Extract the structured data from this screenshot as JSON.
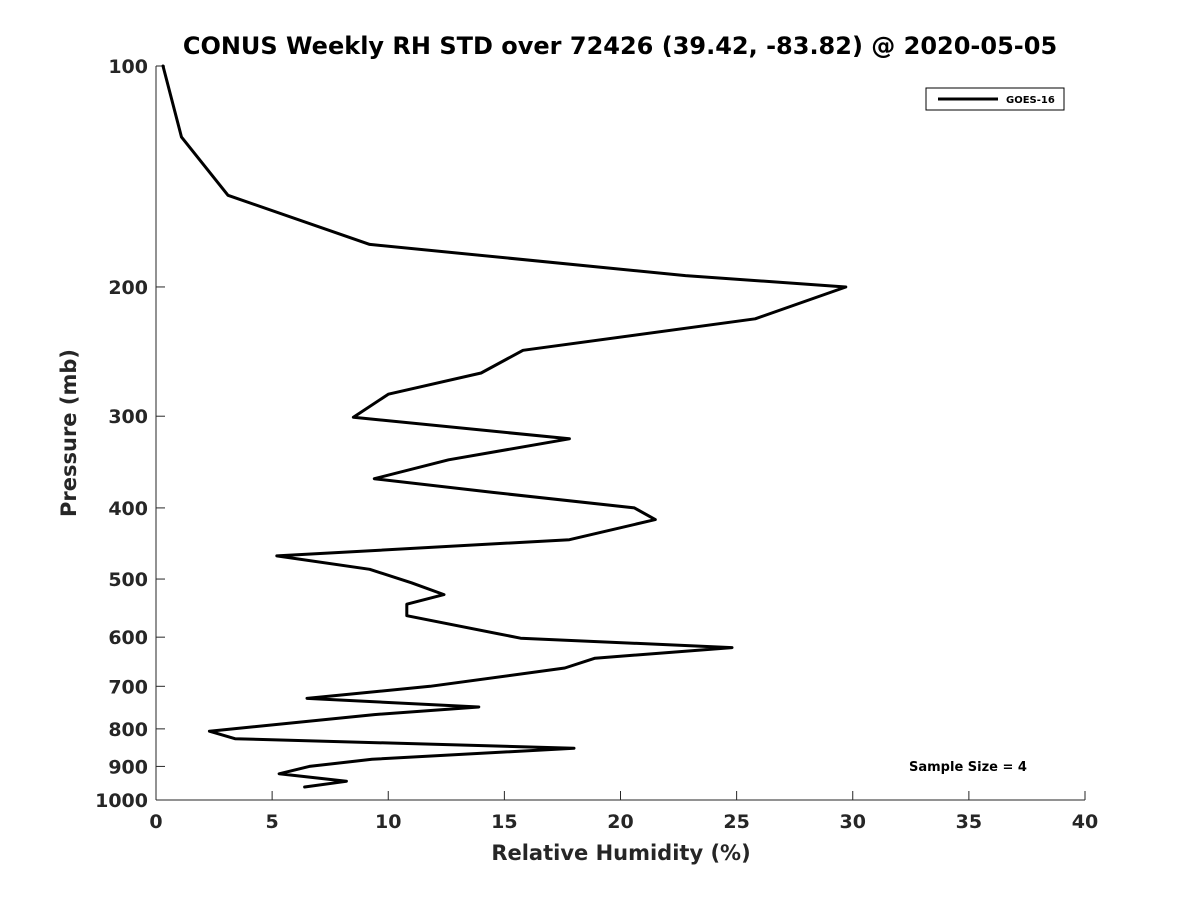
{
  "chart_data": {
    "type": "line",
    "title": "CONUS Weekly RH STD over 72426 (39.42, -83.82) @ 2020-05-05",
    "xlabel": "Relative Humidity (%)",
    "ylabel": "Pressure (mb)",
    "xlim": [
      0,
      40
    ],
    "ylim": [
      100,
      1000
    ],
    "y_scale": "log",
    "y_inverted": true,
    "x_ticks": [
      0,
      5,
      10,
      15,
      20,
      25,
      30,
      35,
      40
    ],
    "y_ticks": [
      100,
      200,
      300,
      400,
      500,
      600,
      700,
      800,
      900,
      1000
    ],
    "grid": false,
    "legend": {
      "position": "top-right",
      "entries": [
        "GOES-16"
      ]
    },
    "annotation": "Sample Size = 4",
    "series": [
      {
        "name": "GOES-16",
        "color": "#000000",
        "points": [
          [
            0.3,
            100
          ],
          [
            1.1,
            125
          ],
          [
            3.1,
            150
          ],
          [
            9.2,
            175
          ],
          [
            22.8,
            193
          ],
          [
            29.7,
            200
          ],
          [
            25.8,
            221
          ],
          [
            15.8,
            244
          ],
          [
            14.0,
            262
          ],
          [
            10.0,
            280
          ],
          [
            8.5,
            301
          ],
          [
            17.8,
            322
          ],
          [
            12.6,
            344
          ],
          [
            9.4,
            365
          ],
          [
            14.5,
            381
          ],
          [
            20.6,
            400
          ],
          [
            21.5,
            415
          ],
          [
            17.8,
            442
          ],
          [
            5.2,
            465
          ],
          [
            9.2,
            485
          ],
          [
            11.0,
            506
          ],
          [
            12.4,
            525
          ],
          [
            10.8,
            541
          ],
          [
            10.8,
            561
          ],
          [
            15.7,
            602
          ],
          [
            24.8,
            620
          ],
          [
            18.9,
            641
          ],
          [
            17.6,
            661
          ],
          [
            11.8,
            700
          ],
          [
            6.5,
            727
          ],
          [
            13.9,
            747
          ],
          [
            9.4,
            765
          ],
          [
            2.3,
            806
          ],
          [
            3.4,
            825
          ],
          [
            18.0,
            850
          ],
          [
            9.3,
            880
          ],
          [
            6.6,
            900
          ],
          [
            5.3,
            921
          ],
          [
            8.2,
            943
          ],
          [
            6.4,
            960
          ]
        ]
      }
    ]
  }
}
